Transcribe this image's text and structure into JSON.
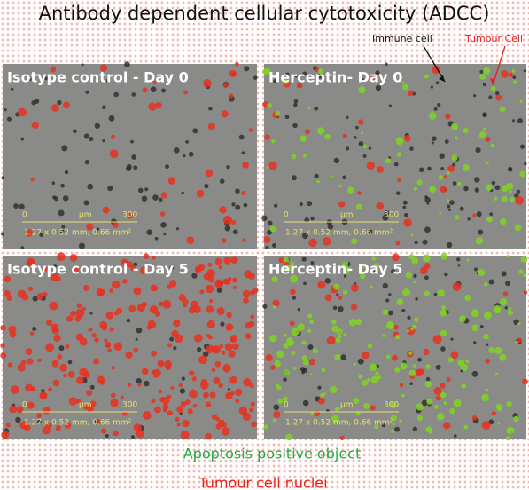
{
  "title": "Antibody dependent cellular cytotoxicity (ADCC)",
  "annotations": [
    {
      "label": "Immune cell"
    },
    {
      "label": "Tumour Cell"
    }
  ],
  "panels": [
    {
      "label": "Isotype control - Day 0",
      "scale": {
        "start": "0",
        "unit": "µm",
        "end": "300",
        "dims": "1.27 x 0.52 mm, 0.66 mm²"
      }
    },
    {
      "label": "Herceptin- Day 0",
      "scale": {
        "start": "0",
        "unit": "µm",
        "end": "300",
        "dims": "1.27 x 0.52 mm, 0.66 mm²"
      }
    },
    {
      "label": "Isotype control - Day 5",
      "scale": {
        "start": "0",
        "unit": "µm",
        "end": "300",
        "dims": "1.27 x 0.52 mm, 0.66 mm²"
      }
    },
    {
      "label": "Herceptin- Day 5",
      "scale": {
        "start": "0",
        "unit": "µm",
        "end": "300",
        "dims": "1.27 x 0.52 mm, 0.66 mm²"
      }
    }
  ],
  "legend": [
    {
      "label": "Apoptosis positive object",
      "color": "#22aa44"
    },
    {
      "label": "Tumour cell nuclei",
      "color": "#e8221a"
    }
  ]
}
